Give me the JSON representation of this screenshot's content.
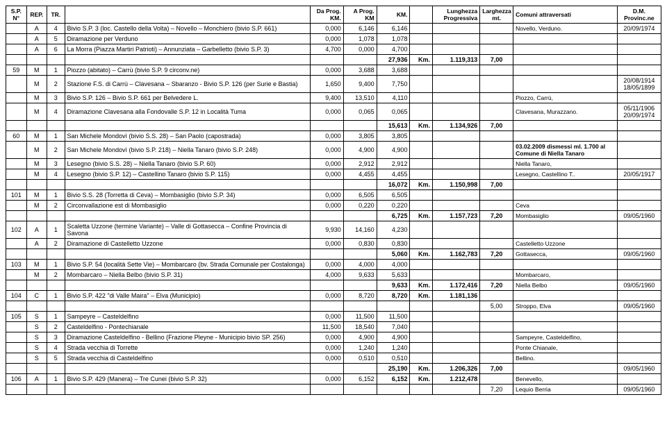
{
  "headers": {
    "sp": "S.P. N°",
    "rep": "REP.",
    "tr": "TR.",
    "desc": "",
    "dp": "Da Prog. KM.",
    "ap": "A Prog. KM",
    "km": "KM.",
    "km2": "",
    "lp": "Lunghezza Progressiva",
    "lm": "Larghezza mt.",
    "com": "Comuni attraversati",
    "dm": "D.M. Provinc.ne"
  },
  "rows": [
    {
      "sp": "",
      "rep": "A",
      "tr": "4",
      "desc": "Bivio S.P. 3 (loc. Castello della Volta) – Novello – Monchiero (bivio S.P. 661)",
      "dp": "0,000",
      "ap": "6,146",
      "km": "6,146",
      "km2": "",
      "lp": "",
      "lm": "",
      "com": "Novello, Verduno.",
      "dm": "20/09/1974"
    },
    {
      "sp": "",
      "rep": "A",
      "tr": "5",
      "desc": "Diramazione per Verduno",
      "dp": "0,000",
      "ap": "1,078",
      "km": "1,078",
      "km2": "",
      "lp": "",
      "lm": "",
      "com": "",
      "dm": ""
    },
    {
      "sp": "",
      "rep": "A",
      "tr": "6",
      "desc": "La Morra (Piazza Martiri Patrioti) – Annunziata – Garbelletto (bivio S.P. 3)",
      "dp": "4,700",
      "ap": "0,000",
      "km": "4,700",
      "km2": "",
      "lp": "",
      "lm": "",
      "com": "",
      "dm": ""
    },
    {
      "sp": "",
      "rep": "",
      "tr": "",
      "desc": "",
      "dp": "",
      "ap": "",
      "km": "27,936",
      "km2": "Km.",
      "lp": "1.119,313",
      "lm": "7,00",
      "com": "",
      "dm": "",
      "bold": true
    },
    {
      "sp": "59",
      "rep": "M",
      "tr": "1",
      "desc": "Piozzo (abitato) – Carrù (bivio S.P. 9 circonv.ne)",
      "dp": "0,000",
      "ap": "3,688",
      "km": "3,688",
      "km2": "",
      "lp": "",
      "lm": "",
      "com": "",
      "dm": ""
    },
    {
      "sp": "",
      "rep": "M",
      "tr": "2",
      "desc": "Stazione F.S. di Carrù – Clavesana – Sbaranzo - Bivio S.P. 126 (per Surie e Bastia)",
      "dp": "1,650",
      "ap": "9,400",
      "km": "7,750",
      "km2": "",
      "lp": "",
      "lm": "",
      "com": "",
      "dm": "20/08/1914 18/05/1899"
    },
    {
      "sp": "",
      "rep": "M",
      "tr": "3",
      "desc": "Bivio S.P. 126 – Bivio S.P. 661 per Belvedere L.",
      "dp": "9,400",
      "ap": "13,510",
      "km": "4,110",
      "km2": "",
      "lp": "",
      "lm": "",
      "com": "Piozzo, Carrù,",
      "dm": ""
    },
    {
      "sp": "",
      "rep": "M",
      "tr": "4",
      "desc": "Diramazione Clavesana alla Fondovalle S.P. 12 in Località Tuma",
      "dp": "0,000",
      "ap": "0,065",
      "km": "0,065",
      "km2": "",
      "lp": "",
      "lm": "",
      "com": "Clavesana, Murazzano.",
      "dm": "05/11/1906 20/09/1974"
    },
    {
      "sp": "",
      "rep": "",
      "tr": "",
      "desc": "",
      "dp": "",
      "ap": "",
      "km": "15,613",
      "km2": "Km.",
      "lp": "1.134,926",
      "lm": "7,00",
      "com": "",
      "dm": "",
      "bold": true
    },
    {
      "sp": "60",
      "rep": "M",
      "tr": "1",
      "desc": "San Michele Mondovì (bivio S.S. 28) – San Paolo (capostrada)",
      "dp": "0,000",
      "ap": "3,805",
      "km": "3,805",
      "km2": "",
      "lp": "",
      "lm": "",
      "com": "",
      "dm": ""
    },
    {
      "sp": "",
      "rep": "M",
      "tr": "2",
      "desc": "San Michele Mondovì (bivio S.P. 218) – Niella Tanaro (bivio S.P. 248)",
      "dp": "0,000",
      "ap": "4,900",
      "km": "4,900",
      "km2": "",
      "lp": "",
      "lm": "",
      "com": "03.02.2009 dismessi ml. 1.700 al Comune di Niella Tanaro",
      "dm": "",
      "comBold": true
    },
    {
      "sp": "",
      "rep": "M",
      "tr": "3",
      "desc": "Lesegno (bivio S.S. 28) – Niella Tanaro (bivio S.P. 60)",
      "dp": "0,000",
      "ap": "2,912",
      "km": "2,912",
      "km2": "",
      "lp": "",
      "lm": "",
      "com": "Niella Tanaro,",
      "dm": ""
    },
    {
      "sp": "",
      "rep": "M",
      "tr": "4",
      "desc": "Lesegno (bivio S.P. 12) – Castellino Tanaro (bivio S.P. 115)",
      "dp": "0,000",
      "ap": "4,455",
      "km": "4,455",
      "km2": "",
      "lp": "",
      "lm": "",
      "com": "Lesegno, Castellino T..",
      "dm": "20/05/1917"
    },
    {
      "sp": "",
      "rep": "",
      "tr": "",
      "desc": "",
      "dp": "",
      "ap": "",
      "km": "16,072",
      "km2": "Km.",
      "lp": "1.150,998",
      "lm": "7,00",
      "com": "",
      "dm": "",
      "bold": true
    },
    {
      "sp": "101",
      "rep": "M",
      "tr": "1",
      "desc": "Bivio S.S. 28 (Torretta di Ceva) – Mombasiglio (bivio S.P. 34)",
      "dp": "0,000",
      "ap": "6,505",
      "km": "6,505",
      "km2": "",
      "lp": "",
      "lm": "",
      "com": "",
      "dm": ""
    },
    {
      "sp": "",
      "rep": "M",
      "tr": "2",
      "desc": "Circonvallazione est di Mombasiglio",
      "dp": "0,000",
      "ap": "0,220",
      "km": "0,220",
      "km2": "",
      "lp": "",
      "lm": "",
      "com": "Ceva",
      "dm": ""
    },
    {
      "sp": "",
      "rep": "",
      "tr": "",
      "desc": "",
      "dp": "",
      "ap": "",
      "km": "6,725",
      "km2": "Km.",
      "lp": "1.157,723",
      "lm": "7,20",
      "com": "Mombasiglio",
      "dm": "09/05/1960",
      "bold": true
    },
    {
      "sp": "102",
      "rep": "A",
      "tr": "1",
      "desc": "Scaletta Uzzone (termine Variante) – Valle di Gottasecca – Confine Provincia di Savona",
      "dp": "9,930",
      "ap": "14,160",
      "km": "4,230",
      "km2": "",
      "lp": "",
      "lm": "",
      "com": "",
      "dm": ""
    },
    {
      "sp": "",
      "rep": "A",
      "tr": "2",
      "desc": "Diramazione di Castelletto Uzzone",
      "dp": "0,000",
      "ap": "0,830",
      "km": "0,830",
      "km2": "",
      "lp": "",
      "lm": "",
      "com": "Castelletto Uzzone",
      "dm": ""
    },
    {
      "sp": "",
      "rep": "",
      "tr": "",
      "desc": "",
      "dp": "",
      "ap": "",
      "km": "5,060",
      "km2": "Km.",
      "lp": "1.162,783",
      "lm": "7,20",
      "com": "Gottasecca,",
      "dm": "09/05/1960",
      "bold": true
    },
    {
      "sp": "103",
      "rep": "M",
      "tr": "1",
      "desc": "Bivio S.P. 54 (località Sette Vie) – Mombarcaro (bv. Strada Comunale per Costalonga)",
      "dp": "0,000",
      "ap": "4,000",
      "km": "4,000",
      "km2": "",
      "lp": "",
      "lm": "",
      "com": "",
      "dm": ""
    },
    {
      "sp": "",
      "rep": "M",
      "tr": "2",
      "desc": "Mombarcaro – Niella Belbo (bivio S.P. 31)",
      "dp": "4,000",
      "ap": "9,633",
      "km": "5,633",
      "km2": "",
      "lp": "",
      "lm": "",
      "com": "Mombarcaro,",
      "dm": ""
    },
    {
      "sp": "",
      "rep": "",
      "tr": "",
      "desc": "",
      "dp": "",
      "ap": "",
      "km": "9,633",
      "km2": "Km.",
      "lp": "1.172,416",
      "lm": "7,20",
      "com": "Niella Belbo",
      "dm": "09/05/1960",
      "bold": true
    },
    {
      "sp": "104",
      "rep": "C",
      "tr": "1",
      "desc": "Bivio S.P. 422 \"di Valle Maira\" – Elva (Municipio)",
      "dp": "0,000",
      "ap": "8,720",
      "km": "8,720",
      "km2": "Km.",
      "lp": "1.181,136",
      "lm": "",
      "com": "",
      "dm": "",
      "bold": true,
      "kmBold": true
    },
    {
      "sp": "",
      "rep": "",
      "tr": "",
      "desc": "",
      "dp": "",
      "ap": "",
      "km": "",
      "km2": "",
      "lp": "",
      "lm": "5,00",
      "com": "Stroppo, Elva",
      "dm": "09/05/1960"
    },
    {
      "sp": "105",
      "rep": "S",
      "tr": "1",
      "desc": "Sampeyre – Casteldelfino",
      "dp": "0,000",
      "ap": "11,500",
      "km": "11,500",
      "km2": "",
      "lp": "",
      "lm": "",
      "com": "",
      "dm": ""
    },
    {
      "sp": "",
      "rep": "S",
      "tr": "2",
      "desc": "Casteldelfino - Pontechianale",
      "dp": "11,500",
      "ap": "18,540",
      "km": "7,040",
      "km2": "",
      "lp": "",
      "lm": "",
      "com": "",
      "dm": ""
    },
    {
      "sp": "",
      "rep": "S",
      "tr": "3",
      "desc": "Diramazione Casteldelfino - Bellino (Frazione Pleyne - Municipio bivio SP. 256)",
      "dp": "0,000",
      "ap": "4,900",
      "km": "4,900",
      "km2": "",
      "lp": "",
      "lm": "",
      "com": "Sampeyre, Casteldelfino,",
      "dm": ""
    },
    {
      "sp": "",
      "rep": "S",
      "tr": "4",
      "desc": "Strada vecchia di Torrette",
      "dp": "0,000",
      "ap": "1,240",
      "km": "1,240",
      "km2": "",
      "lp": "",
      "lm": "",
      "com": "Ponte Chianale,",
      "dm": ""
    },
    {
      "sp": "",
      "rep": "S",
      "tr": "5",
      "desc": "Strada vecchia di Casteldelfino",
      "dp": "0,000",
      "ap": "0,510",
      "km": "0,510",
      "km2": "",
      "lp": "",
      "lm": "",
      "com": "Bellino.",
      "dm": ""
    },
    {
      "sp": "",
      "rep": "",
      "tr": "",
      "desc": "",
      "dp": "",
      "ap": "",
      "km": "25,190",
      "km2": "Km.",
      "lp": "1.206,326",
      "lm": "7,00",
      "com": "",
      "dm": "09/05/1960",
      "bold": true
    },
    {
      "sp": "106",
      "rep": "A",
      "tr": "1",
      "desc": "Bivio S.P. 429 (Manera) – Tre Cunei (bivio S.P. 32)",
      "dp": "0,000",
      "ap": "6,152",
      "km": "6,152",
      "km2": "Km.",
      "lp": "1.212,478",
      "lm": "",
      "com": "Benevello,",
      "dm": "",
      "kmBold": true,
      "bold": true
    },
    {
      "sp": "",
      "rep": "",
      "tr": "",
      "desc": "",
      "dp": "",
      "ap": "",
      "km": "",
      "km2": "",
      "lp": "",
      "lm": "7,20",
      "com": "Lequio Berria",
      "dm": "09/05/1960"
    }
  ]
}
